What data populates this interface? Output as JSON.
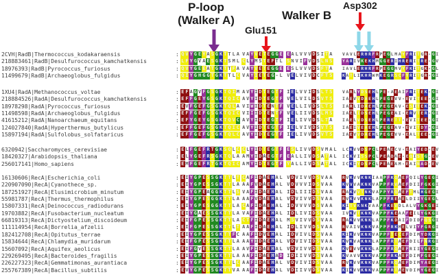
{
  "annotations": {
    "p_loop_line1": "P-loop",
    "p_loop_line2": "(Walker A)",
    "glu151": "Glu151",
    "walker_b": "Walker B",
    "asp302": "Asp302"
  },
  "separator": ":",
  "palette": {
    "y": "#f0ee0c",
    "g": "#218a21",
    "b": "#2b2ba3",
    "p": "#993299",
    "r": "#8f1111"
  },
  "text_colors": {
    "plain": "#5c5c5c",
    "on_color": "#ededed",
    "label": "#3c3c3c"
  },
  "arrow_colors": {
    "walker_a": "#7a2d8f",
    "red": "#e8151c",
    "cyan": "#8ed7e8"
  },
  "groups": [
    {
      "name": "RadB",
      "rows": [
        {
          "label": "2CVH|RadB|Thermococcus_kodakaraensis",
          "segs": [
            "QVYGEYASGKTTLA",
            "VAYVETEGGE",
            "EALVVVDSITA",
            "VAVLERHRFRPEGLMAYFRITGR-GI"
          ],
          "colors": [
            "yypggywygbywww",
            "wwpyryrggp",
            "pwwwwwrwwyw",
            "wwwwrbbbprwrgwwwypbwywrwgw"
          ]
        },
        {
          "label": "218883461|RadB|Desulfurococcus_kamchatkensis",
          "segs": [
            "LFYGVAESGKTSML",
            "CLYMSTEFTL",
            "SNVIFVDSLNS",
            "YARIVKEKHMGGERIHRERITRE-GV"
          ],
          "colors": [
            "yypgwwgygbywww",
            "ywpwwyrrww",
            "ywwwpwrwyyy",
            "ppbwwgrbbwggrbwbbrbwybrwgw"
          ]
        },
        {
          "label": "18976393|RadB|Pyrococcus_furiosus",
          "segs": [
            "QVYGEEATGKTTFA",
            "VAYVETEGGE",
            "ESLVVVDSFTA",
            "IAVLERHRFRPEGGMVYFKITGK-GL"
          ],
          "colors": [
            "yypggywygbywyw",
            "wwpyryrggp",
            "pwwwwwrwyyw",
            "wwwwrbbbprwrggwwypbwywrwgw"
          ]
        },
        {
          "label": "11499679|RadB|Archaeoglobus_fulgidus",
          "segs": [
            "QIYGHGGTGKTTLC",
            "VAYIETEG-L",
            "VELVIVDCFTS",
            "KATLIKHRWMKEGRSCFYRITGR-GI"
          ],
          "colors": [
            "yypggggygbywwy",
            "wwpyryrgww",
            "wbwwwwrwyyy",
            "bwywwbbbwwbrgbyypybwywrwgw"
          ]
        }
      ]
    },
    {
      "name": "RadA",
      "rows": [
        {
          "label": "1XU4|RadA|Methanococcus_voltae",
          "segs": [
            "EFAGVFGSGKTQIM",
            "AVYIDTEGTF",
            "IELVVIDSLTS",
            "VARLYDSEHLPE-AEAIFRITEK-GI"
          ],
          "colors": [
            "rrwgwpgygbyyyw",
            "wwpwryrgyp",
            "wbwwwwrwyyy",
            "wwrwpyyrbwgrwwrwwpbwyrbwgw"
          ]
        },
        {
          "label": "218884526|RadA|Desulfurococcus_kamchatkensis",
          "segs": [
            "EFFGEYGSGKTQIC",
            "AVYIDTEGTF",
            "VELVILDSVTS",
            "IAEVVDAEHLPEGEVV-EVITEE-GI"
          ],
          "colors": [
            "rrpgrpgygbyyyy",
            "wwpwryrgyp",
            "wbwwwwrwyyy",
            "wwrwyryrbwgrgrwwwrwwyrrwgw"
          ]
        },
        {
          "label": "18978298|RadA|Pyrococcus_furiosus",
          "segs": [
            "EVFGEFGSGKTQLA",
            "VIWIDTENTF",
            "VELLIVDSLTS",
            "IARLIDAEHLPEGEAV-ESITEK-GI"
          ],
          "colors": [
            "rwpgrpgygbyyyw",
            "wwpwryrwyp",
            "wbwwwwrwyyy",
            "wwrwwryrbwgrgrwwwrywyrbwgw"
          ]
        },
        {
          "label": "11498598|RadA|Archaeoglobus_fulgidus",
          "segs": [
            "EFFGEFGSGKTQIC",
            "VIIIDTENTF",
            "VELIIVDSLMS",
            "IAELIDSEHLPEGEAI-ERVTER-GI"
          ],
          "colors": [
            "rrpgrpgygbyyyy",
            "wwpwryrwyp",
            "wbwwwwrwyyy",
            "wwrwyryrbwgrgrwwwrbwyrbwgw"
          ]
        },
        {
          "label": "41615212|RadA|Nanoarchaeum_equitans",
          "segs": [
            "EFYGEYGSGKTQVC",
            "AVYIDTEGTF",
            "IELIVVDSLTA",
            "IAELVDSEHLPERETT-EVITEE-GI"
          ],
          "colors": [
            "rrpgrpgygbyyyg",
            "wwpwryrgyp",
            "wbwwwwrwyyw",
            "wwrwyryrbwgrbryywrwwyrrwgw"
          ]
        },
        {
          "label": "124027840|RadA|Hyperthermus_butylicus",
          "segs": [
            "EFFGEFGSGKTQIC",
            "AVYIDTEGTF",
            "IELVIVDSVTS",
            "IAEIVEAEHLPEGEAV-EVITDY-GI"
          ],
          "colors": [
            "rrpgrpgygbyyyy",
            "wwpwryrgyp",
            "wbwwwwrwyyy",
            "wwrwyryrbwgrgrwwwrwwyrpwgw"
          ]
        },
        {
          "label": "15897194|RadA|Sulfolobus_solfataricus",
          "segs": [
            "EFFGEFGSGKTQLC",
            "AVYIDTEGTF",
            "IELIVVDSVTS",
            "IAEVVDAEHLPEGEVV-EALTEE-GI"
          ],
          "colors": [
            "rrpgrpgygbyyyy",
            "wwpwryrgyp",
            "wbwwwwrwyyy",
            "wwrwyryrbwgrgrwwwrwwyrrwgw"
          ]
        }
      ]
    },
    {
      "name": "Rad51_eukaryotes",
      "rows": [
        {
          "label": "6320942|Saccharomyces_cerevisiae",
          "segs": [
            "ELFGEFRTGKSQLC",
            "CLYIDTEGTF",
            "ESLIVVDSVMAL",
            "LCKVVDSPCLPEAECV-EAIYED-EV"
          ],
          "colors": [
            "rwpgrpbrgbyywy",
            "ywpwryrgyp",
            "pywwwwrywwww",
            "wwbwwryrgwrrwrwwwrwwprrwrw"
          ]
        },
        {
          "label": "18420327|Arabidopsis_thaliana",
          "segs": [
            "ELYGEFRSGKTQLA",
            "AMYIDAEGTF",
            "EALLIVDSATAL",
            "ICKVISSPCLPEADAE-EQISTG-EV"
          ],
          "colors": [
            "rwpgrpbygbyyww",
            "wwpwrwrgyp",
            "pwwwwwrywyww",
            "wwbwwyyrgwrrwrwrwrywyygwrw"
          ]
        },
        {
          "label": "256017141|Homo_sapiens",
          "segs": [
            "EMFGEFRTGKTQIC",
            "AMYIDTEGTF",
            "YALLIVDSATAL",
            "ICKIYDSPCLPEAEAM-EAINAD-EV"
          ],
          "colors": [
            "rwpgrpbygbyyyy",
            "wwpwryrgyp",
            "ywwwwwrywyww",
            "wwbwyryrgwrrwrwwwrwwyprwrw"
          ]
        }
      ]
    },
    {
      "name": "RecA",
      "rows": [
        {
          "label": "16130606|RecA|Escherichia_coli",
          "segs": [
            "EIYGPESSGKTTLT",
            "CAFIDAEHAL",
            "VDVIVVDSVAA",
            "RVKVVKNKIAAPFKQAEFQILYGEGI"
          ],
          "colors": [
            "rwpggryggbyywy",
            "ywpwrwrbww",
            "wrwwwwrywww",
            "rwbwwbbbwwwgpbywrpwwwpgrgw"
          ]
        },
        {
          "label": "220907090|RecA|Cyanothece_sp.",
          "segs": [
            "EIYGPESSGKTTLA",
            "AAFVDAEHAL",
            "VDVVVIDSVAA",
            "KVVVAKNKVAPPFRVAEFDIIFGKGI"
          ],
          "colors": [
            "rwpggryggbyyww",
            "wwpwrwrbww",
            "wrwwwwrywww",
            "bwbwwbbbwwggpbywrpwwwpgrgw"
          ]
        },
        {
          "label": "187251927|RecA|Elusimicrobium_minutum",
          "segs": [
            "EIYGPEAGGKTTLS",
            "VAFIDAEHAL",
            "IDLIIIDSVAA",
            "RAKVVTNKVAPPYRQAEFTMLHGEGI"
          ],
          "colors": [
            "rwpggrwggbyywy",
            "wwpwrwrbww",
            "wrwwwwrywww",
            "rwbwyybbwwggpbywrpywwbgrgw"
          ]
        },
        {
          "label": "55981787|RecA|Thermus_thermophilus",
          "segs": [
            "EIYGPESGGKTTLA",
            "AAFVDAEHAL",
            "VDVIVVDSVAA",
            "RVKVVKNKLAPPFREAELDIIYGEGL"
          ],
          "colors": [
            "rwpggryggbyyww",
            "wwpwrwrbww",
            "wrwwwwrywww",
            "rwbwwbbbwwggpbrwrwwwwpgrgw"
          ]
        },
        {
          "label": "15807331|RecA|Deinococcus_radiodurans",
          "segs": [
            "EIYGPESGGKTTLA",
            "CAFIDAEHAL",
            "IDVVVVDSVAA",
            "KITVKNKVAAPFKEVDLALVYGKGEI"
          ],
          "colors": [
            "rwpggryggbyyww",
            "ywpwrwrbww",
            "wrwwwwrywww",
            "bwyybbbwwwgpbrywwwwwpgrgrw"
          ]
        },
        {
          "label": "19703882|RecA|Fusobacterium_nucleatum",
          "segs": [
            "EIYGAESSGKTTLA",
            "VAFIDAEHAL",
            "IDLIVIDSVAA",
            "IVKVTKNKVAPPFKEAAFEILYGKGI"
          ],
          "colors": [
            "rwpgwryggbyyww",
            "wwpwrwrbww",
            "wrwwwwrywww",
            "wwbwybbbwwggpbrwwprwwpgrgw"
          ]
        },
        {
          "label": "66819313|RecA|Dictyostelium_discoideum",
          "segs": [
            "EIFGPESSGKTTLA",
            "CTFIDAEHAL",
            "MSVIVVDSVAA",
            "RAKVVKNKLAPPFKDAIFDIDFQSGI"
          ],
          "colors": [
            "rwpggryggbyyww",
            "yypwrwrbww",
            "wywwwwrywww",
            "rwbwwbbbwwggpbrwwpwwwpyygw"
          ]
        },
        {
          "label": "111114954|RecA|Borrelia_afzelii",
          "segs": [
            "EIFGPESSGKTTLT",
            "AAFIDAEHAL",
            "IDLIVVDSVAA",
            "RVAIVKNKVAPPFRKMELVIYFGRGI"
          ],
          "colors": [
            "rwpggryggbyywy",
            "wwpwrwrbww",
            "wrwwwwrywww",
            "rwwwwbbbwwggpbbwrwwwppgrgw"
          ]
        },
        {
          "label": "182412708|RecA|Opitutus_terrae",
          "segs": [
            "EIYGPESSGKTTFC",
            "AAFIDVEHAL",
            "IDVIVLDSVAA",
            "KIKVVKNKVAPPFTECEFDIMYDRGI"
          ],
          "colors": [
            "rwpggryggbyypw",
            "wwpwrwrbww",
            "wrwwwwrywww",
            "bwbwwbbbwwggpyryrpwwwprbgw"
          ]
        },
        {
          "label": "15834644|RecA|Chlamydia_muridarum",
          "segs": [
            "EIFGPESSGKTTLA",
            "AAYIDAEHAL",
            "VDVIVIDSVAA",
            "KVKVAKNKLAPPFRTAEFDILFNRGI"
          ],
          "colors": [
            "rwpggryggbyyww",
            "wwpwrwrbww",
            "wrwwwwrywww",
            "bwbwwbbbwwggpbywrpwwwpybgw"
          ]
        },
        {
          "label": "15607092|RecA|Aquifex_aeolicus",
          "segs": [
            "EIFGVESSGKTTLA",
            "AVFIDAEHAL",
            "VDVIVVDSVAA",
            "KVEVVKNKLAPPFRQAEFRIIYGEGI"
          ],
          "colors": [
            "rwpgwryggbyyww",
            "wwpwrwrbww",
            "wrwwwwrywww",
            "bwrwwbbbwwggpbywrpwwwpgrgw"
          ]
        },
        {
          "label": "229269495|RecA|Bacteroides_fragilis",
          "segs": [
            "EIYGPESSGKTTLA",
            "AAFIDAEHAD",
            "IDIIVVDSVAA",
            "KVAVVKNKVAPPFRKAEFDIMFGEGI"
          ],
          "colors": [
            "rwpggryggbyyww",
            "wwpwrwrbwp",
            "wrwwwwrywww",
            "bwwwwbbbwwggpbbwrpwwwpgrgw"
          ]
        },
        {
          "label": "226227323|RecA|Gemmatimonas_aurantiaca",
          "segs": [
            "EIYGPESSGKTTLC",
            "AAFIDAEHAL",
            "VDVIVIDSVAA",
            "RVKVVKNKVAPPFRQAEFDIMYAEGI"
          ],
          "colors": [
            "rwpggryggbyywy",
            "wwpwrwrbww",
            "wrwwwwrywww",
            "rwbwwbbbwwggpbywrpwwwpprgw"
          ]
        },
        {
          "label": "255767389|RecA|Bacillus_subtilis",
          "segs": [
            "EVYGPESSGKTTVA",
            "AAFIDAEHAL",
            "VDIIVVDSVAA",
            "KIKVVKNKVAPPFRTAEVDIMYGEGI"
          ],
          "colors": [
            "rwpggryggbyyww",
            "wwpwrwrbww",
            "wrwwwwrywww",
            "bwbwwbbbwwggpbywrwwwwpgrgw"
          ]
        }
      ]
    }
  ]
}
